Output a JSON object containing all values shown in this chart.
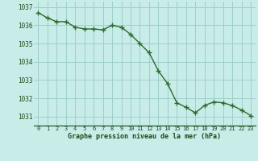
{
  "x": [
    0,
    1,
    2,
    3,
    4,
    5,
    6,
    7,
    8,
    9,
    10,
    11,
    12,
    13,
    14,
    15,
    16,
    17,
    18,
    19,
    20,
    21,
    22,
    23
  ],
  "y": [
    1036.7,
    1036.4,
    1036.2,
    1036.2,
    1035.9,
    1035.8,
    1035.8,
    1035.75,
    1036.0,
    1035.9,
    1035.5,
    1035.0,
    1034.5,
    1033.5,
    1032.8,
    1031.75,
    1031.5,
    1031.2,
    1031.6,
    1031.8,
    1031.75,
    1031.6,
    1031.35,
    1031.05
  ],
  "line_color": "#2d6a2d",
  "marker_color": "#2d6a2d",
  "bg_color": "#c8ece8",
  "grid_color": "#9ecfcb",
  "xlabel": "Graphe pression niveau de la mer (hPa)",
  "xlabel_color": "#1a4a1a",
  "tick_color": "#1a4a1a",
  "ylim": [
    1030.5,
    1037.3
  ],
  "yticks": [
    1031,
    1032,
    1033,
    1034,
    1035,
    1036,
    1037
  ],
  "xlim": [
    -0.5,
    23.5
  ],
  "xticks": [
    0,
    1,
    2,
    3,
    4,
    5,
    6,
    7,
    8,
    9,
    10,
    11,
    12,
    13,
    14,
    15,
    16,
    17,
    18,
    19,
    20,
    21,
    22,
    23
  ]
}
